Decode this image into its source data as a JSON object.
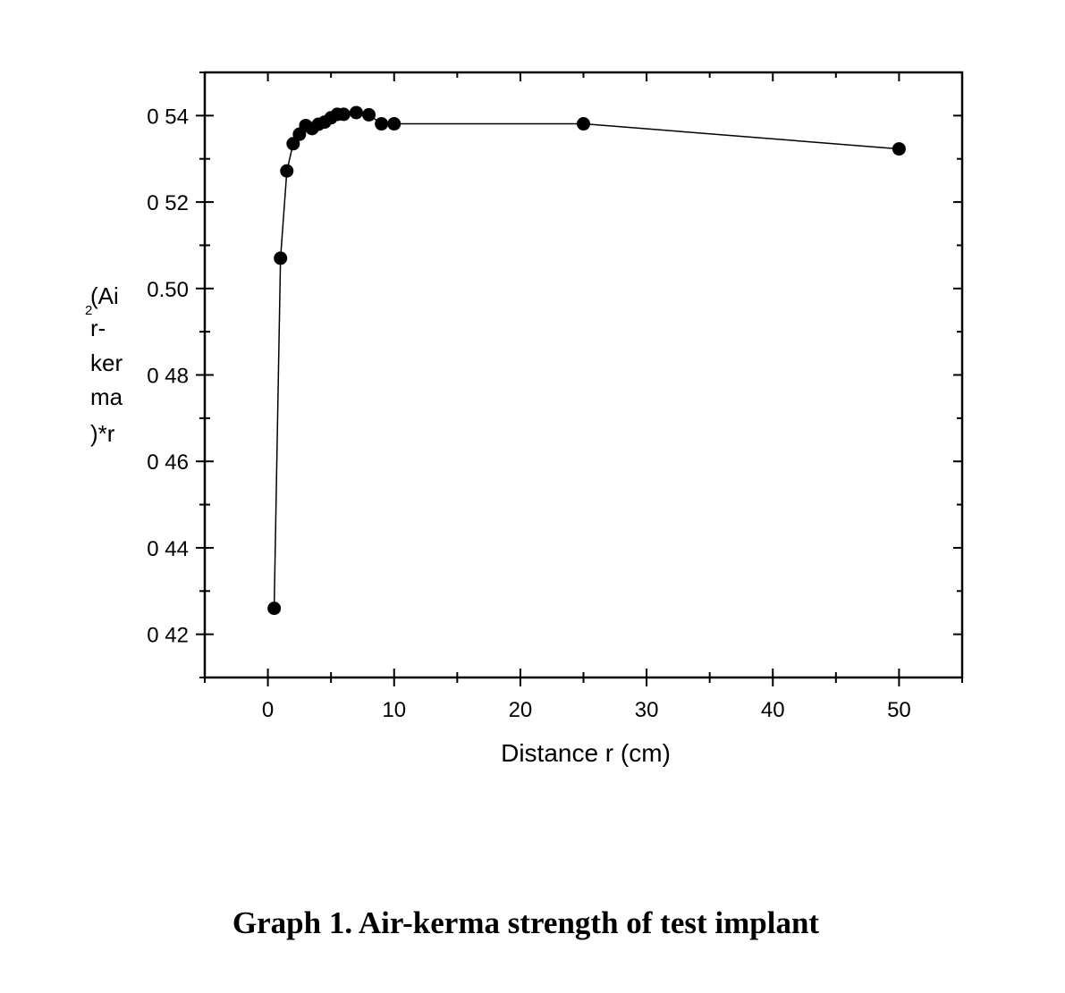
{
  "chart_data": {
    "type": "line",
    "title": "Graph 1. Air-kerma strength of test implant",
    "xlabel": "Distance r (cm)",
    "ylabel_lines": [
      "(Ai",
      "r-",
      "ker",
      "ma",
      ")*r"
    ],
    "ylabel_superscript": "2",
    "xlim": [
      -5,
      55
    ],
    "ylim": [
      0.41,
      0.55
    ],
    "xticks": [
      0,
      10,
      20,
      30,
      40,
      50
    ],
    "xtick_labels": [
      "0",
      "10",
      "20",
      "30",
      "40",
      "50"
    ],
    "yticks": [
      0.42,
      0.44,
      0.46,
      0.48,
      0.5,
      0.52,
      0.54
    ],
    "ytick_labels": [
      "0 42",
      "0 44",
      "0 46",
      "0 48",
      "0.50",
      "0 52",
      "0 54"
    ],
    "grid": false,
    "series": [
      {
        "x": [
          0.5,
          1.0,
          1.5,
          2.0,
          2.5,
          3.0,
          3.5,
          4.0,
          4.5,
          5.0,
          5.5,
          6.0,
          7.0,
          8.0,
          9.0,
          10.0,
          25.0,
          50.0
        ],
        "y": [
          0.426,
          0.507,
          0.5272,
          0.5335,
          0.5357,
          0.5377,
          0.537,
          0.538,
          0.5385,
          0.5395,
          0.5403,
          0.5403,
          0.5407,
          0.5402,
          0.5381,
          0.5381,
          0.5381,
          0.5323
        ]
      }
    ]
  }
}
